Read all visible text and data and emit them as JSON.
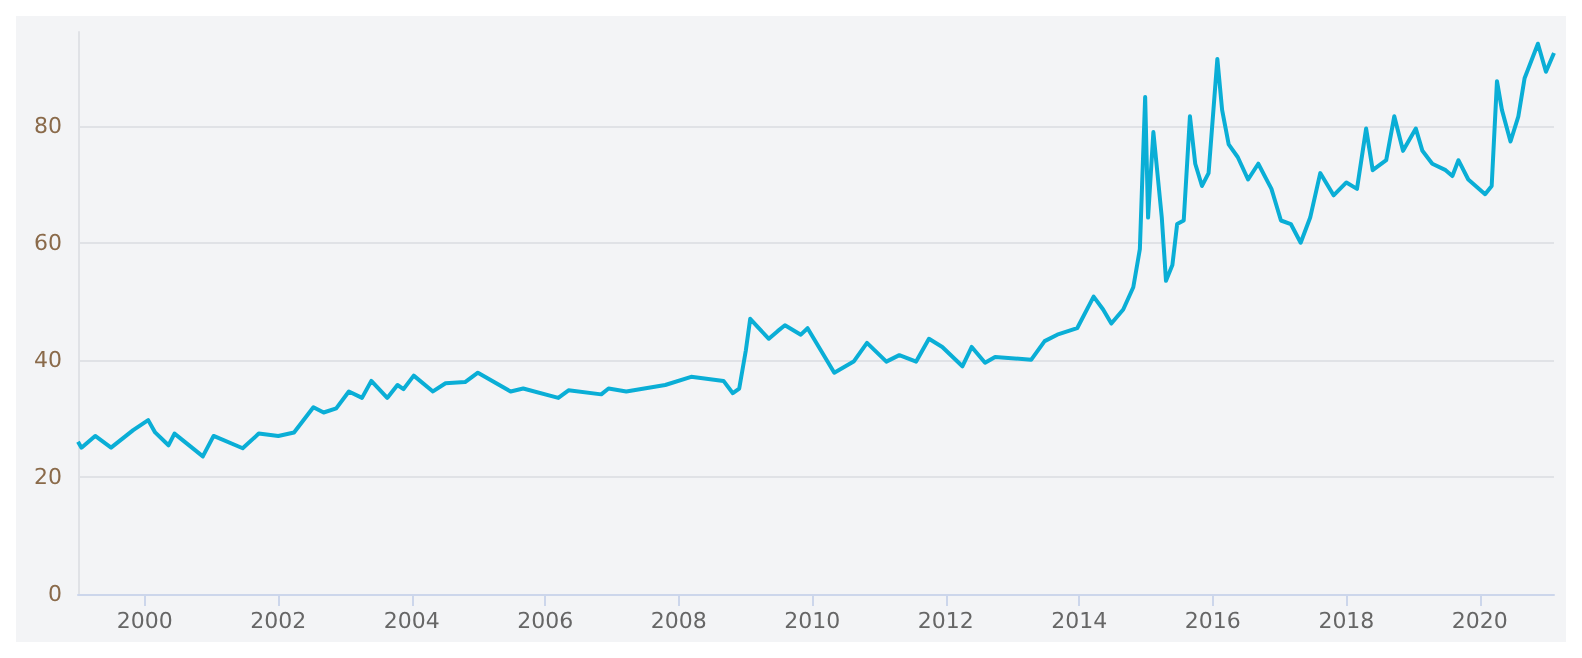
{
  "chart_data": {
    "type": "line",
    "grid": "y",
    "marker": "none",
    "line_style": "solid",
    "xlim": [
      "1999-01-01",
      "2021-02-10"
    ],
    "ylim": [
      0,
      96
    ],
    "xticks": [
      "2000",
      "2002",
      "2004",
      "2006",
      "2008",
      "2010",
      "2012",
      "2014",
      "2016",
      "2018",
      "2020"
    ],
    "yticks": [
      0,
      20,
      40,
      60,
      80
    ],
    "x": [
      "1999-01-01",
      "1999-01-20",
      "1999-04-05",
      "1999-07-01",
      "1999-10-30",
      "2000-01-20",
      "2000-02-27",
      "2000-05-10",
      "2000-06-12",
      "2000-11-14",
      "2001-01-12",
      "2001-06-20",
      "2001-09-16",
      "2002-01-01",
      "2002-03-28",
      "2002-07-12",
      "2002-09-06",
      "2002-11-14",
      "2003-01-22",
      "2003-04-04",
      "2003-05-25",
      "2003-08-20",
      "2003-10-15",
      "2003-11-17",
      "2004-01-12",
      "2004-04-26",
      "2004-07-04",
      "2004-10-19",
      "2004-12-28",
      "2005-06-25",
      "2005-09-02",
      "2006-03-13",
      "2006-05-08",
      "2006-11-03",
      "2006-12-13",
      "2007-03-20",
      "2007-10-19",
      "2008-03-09",
      "2008-09-02",
      "2008-10-23",
      "2008-11-27",
      "2009-01-02",
      "2009-01-26",
      "2009-03-14",
      "2009-05-08",
      "2009-06-25",
      "2009-08-04",
      "2009-10-30",
      "2009-12-06",
      "2010-05-01",
      "2010-08-15",
      "2010-10-27",
      "2011-02-10",
      "2011-04-22",
      "2011-07-23",
      "2011-10-01",
      "2011-12-13",
      "2012-04-01",
      "2012-05-22",
      "2012-08-03",
      "2012-09-27",
      "2013-04-12",
      "2013-06-25",
      "2013-09-02",
      "2013-12-20",
      "2014-03-20",
      "2014-05-11",
      "2014-06-25",
      "2014-08-29",
      "2014-10-23",
      "2014-11-28",
      "2014-12-27",
      "2015-01-12",
      "2015-02-10",
      "2015-03-28",
      "2015-04-20",
      "2015-05-25",
      "2015-06-20",
      "2015-07-26",
      "2015-08-29",
      "2015-09-27",
      "2015-11-03",
      "2015-12-09",
      "2016-01-26",
      "2016-02-21",
      "2016-03-28",
      "2016-05-17",
      "2016-07-12",
      "2016-09-06",
      "2016-11-17",
      "2017-01-08",
      "2017-03-03",
      "2017-04-26",
      "2017-06-17",
      "2017-08-11",
      "2017-10-23",
      "2018-01-01",
      "2018-02-28",
      "2018-04-19",
      "2018-05-25",
      "2018-08-07",
      "2018-09-20",
      "2018-11-07",
      "2019-01-16",
      "2019-02-21",
      "2019-04-16",
      "2019-06-28",
      "2019-08-04",
      "2019-09-06",
      "2019-10-30",
      "2020-01-30",
      "2020-03-06",
      "2020-04-04",
      "2020-05-01",
      "2020-06-17",
      "2020-07-30",
      "2020-09-02",
      "2020-11-14",
      "2020-12-28",
      "2021-02-10"
    ],
    "series": [
      {
        "color": "#0aaed6",
        "values": [
          26,
          25,
          27,
          25,
          28,
          29.7,
          27.6,
          25.4,
          27.4,
          23.5,
          27,
          24.9,
          27.4,
          27,
          27.6,
          31.9,
          31,
          31.7,
          34.6,
          33.5,
          36.4,
          33.5,
          35.7,
          35,
          37.3,
          34.6,
          36,
          36.2,
          37.8,
          34.6,
          35.1,
          33.5,
          34.8,
          34.1,
          35.1,
          34.6,
          35.7,
          37.1,
          36.4,
          34.3,
          35.1,
          41.6,
          47,
          45.4,
          43.6,
          44.9,
          45.9,
          44.3,
          45.4,
          37.8,
          39.7,
          42.9,
          39.7,
          40.8,
          39.7,
          43.6,
          42.2,
          38.9,
          42.2,
          39.5,
          40.5,
          40,
          43.2,
          44.3,
          45.4,
          50.8,
          48.6,
          46.2,
          48.6,
          52.4,
          58.9,
          84.9,
          64.3,
          78.9,
          64.3,
          53.5,
          56.2,
          63.2,
          63.8,
          81.6,
          73.5,
          69.7,
          71.9,
          91.4,
          82.7,
          76.8,
          74.6,
          70.8,
          73.5,
          69.2,
          63.8,
          63.2,
          60,
          64.3,
          71.9,
          68.1,
          70.3,
          69.2,
          79.5,
          72.4,
          74.1,
          81.6,
          75.7,
          79.5,
          75.7,
          73.5,
          72.4,
          71.4,
          74.1,
          70.8,
          68.3,
          69.7,
          87.6,
          82.7,
          77.3,
          81.6,
          88.1,
          94,
          89.2,
          92.4
        ]
      }
    ]
  }
}
